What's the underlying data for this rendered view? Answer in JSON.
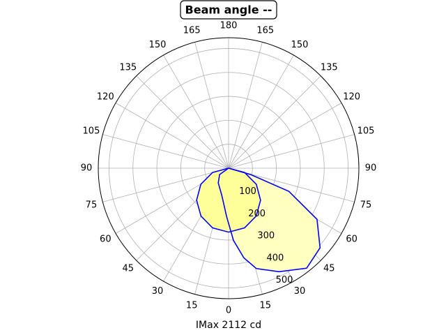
{
  "chart_data": {
    "type": "polar",
    "title": "Beam angle --",
    "xlabel": "IMax 2112 cd",
    "rlim": [
      0,
      545
    ],
    "rticks": [
      100,
      200,
      300,
      400,
      500
    ],
    "thetaticks": [
      0,
      15,
      30,
      45,
      60,
      75,
      90,
      105,
      120,
      135,
      150,
      165,
      180,
      {
        "value": 195,
        "label": "165"
      },
      {
        "value": 210,
        "label": "150"
      },
      {
        "value": 225,
        "label": "135"
      },
      {
        "value": 240,
        "label": "120"
      },
      {
        "value": 255,
        "label": "105"
      },
      {
        "value": 270,
        "label": "90"
      },
      {
        "value": 285,
        "label": "75"
      },
      {
        "value": 300,
        "label": "60"
      },
      {
        "value": 315,
        "label": "45"
      },
      {
        "value": 330,
        "label": "30"
      },
      {
        "value": 345,
        "label": "15"
      }
    ],
    "grid": true,
    "series": [
      {
        "color": "#0000ff",
        "fill": "#ffffc0",
        "theta": [
          -90,
          -55,
          -35,
          -14,
          -2.5,
          3.9,
          9.7,
          15.5,
          26,
          38,
          49,
          60,
          69,
          74,
          90
        ],
        "values": [
          0,
          46,
          75,
          117,
          200,
          302,
          380,
          435,
          481,
          530,
          507,
          427,
          270,
          96,
          0
        ]
      },
      {
        "color": "#0000ff",
        "fill": "#ffff99",
        "theta": [
          -90,
          -75,
          -60,
          -45,
          -30,
          -15,
          0,
          15,
          30,
          45,
          60,
          75,
          90
        ],
        "values": [
          0,
          69,
          134,
          189,
          231,
          258,
          267,
          258,
          231,
          189,
          134,
          69,
          0
        ]
      }
    ]
  }
}
